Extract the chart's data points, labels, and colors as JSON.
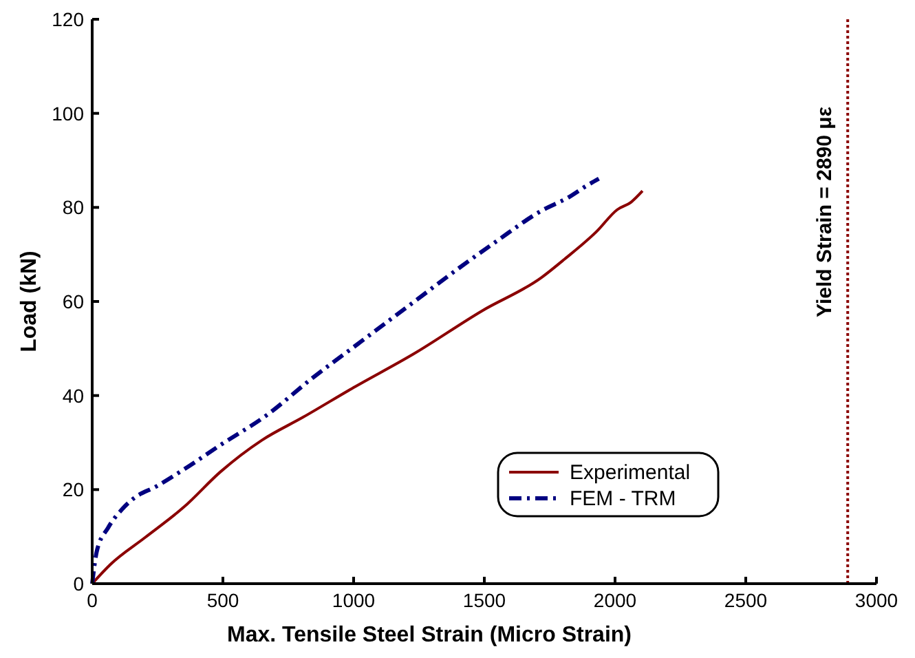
{
  "chart_data": {
    "type": "line",
    "xlabel": "Max. Tensile Steel Strain (Micro Strain)",
    "ylabel": "Load (kN)",
    "xlim": [
      0,
      3000
    ],
    "xticks": [
      0,
      500,
      1000,
      1500,
      2000,
      2500,
      3000
    ],
    "ylim": [
      0,
      120
    ],
    "yticks": [
      0,
      20,
      40,
      60,
      80,
      100,
      120
    ],
    "legend": "bottom right",
    "grid": false,
    "series": [
      {
        "name": "Experimental",
        "color": "#8b0000",
        "line_style": "solid",
        "x": [
          0,
          70,
          202,
          351,
          491,
          649,
          807,
          1000,
          1228,
          1491,
          1719,
          1807,
          1930,
          2008,
          2061,
          2105
        ],
        "values": [
          0,
          4.1,
          9.8,
          16.3,
          23.8,
          30.5,
          35.4,
          41.7,
          48.8,
          58,
          65.1,
          69,
          74.9,
          79.5,
          81.1,
          83.5
        ]
      },
      {
        "name": "FEM - TRM",
        "color": "#000080",
        "line_style": "dashdot",
        "x": [
          0,
          18,
          61,
          114,
          158,
          246,
          351,
          491,
          667,
          842,
          1017,
          1228,
          1403,
          1544,
          1719,
          1824,
          1894,
          1938
        ],
        "values": [
          0,
          7,
          11.9,
          15.8,
          18.1,
          20.7,
          24.3,
          29.5,
          35.8,
          43.7,
          51,
          59.8,
          67.1,
          72.7,
          79.3,
          82.2,
          84.7,
          86.1
        ]
      }
    ],
    "ref_lines": [
      {
        "axis": "x",
        "value": 2890,
        "label": "Yield Strain = 2890 με",
        "color": "#8b0000",
        "line_style": "dotted"
      }
    ]
  }
}
